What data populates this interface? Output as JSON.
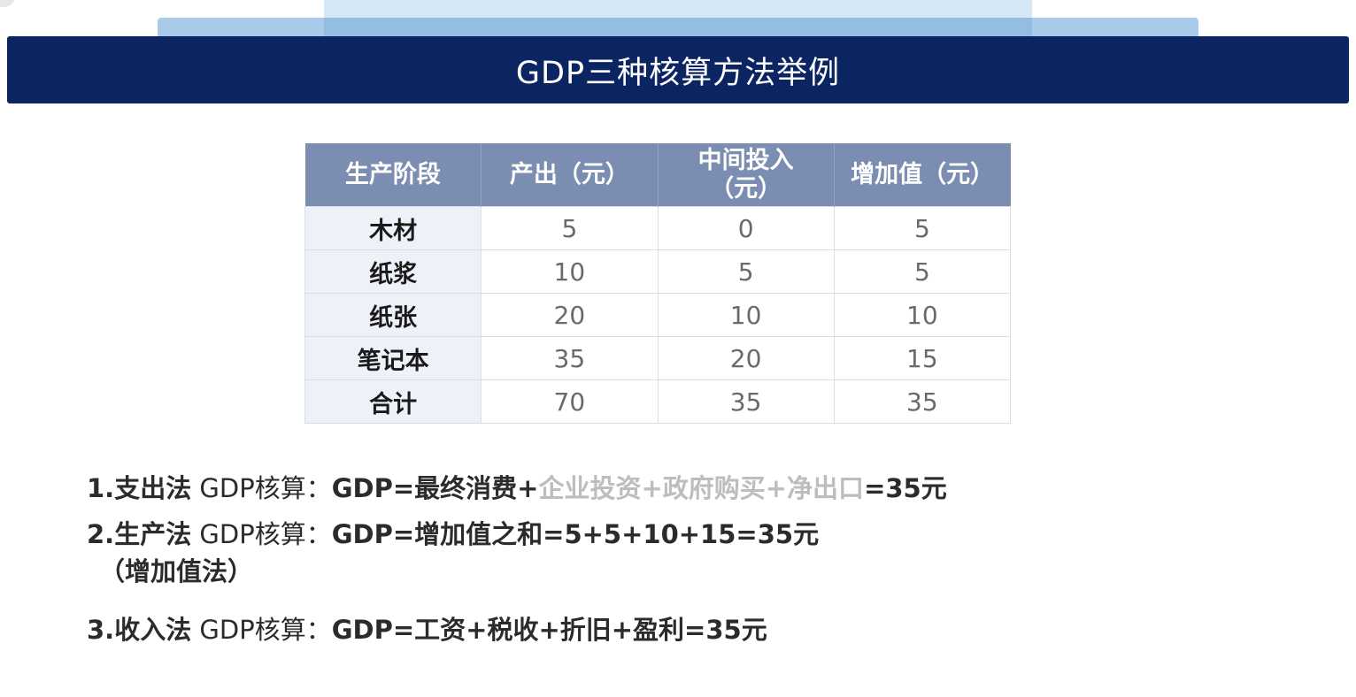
{
  "header": {
    "title": "GDP三种核算方法举例"
  },
  "table": {
    "headers": [
      "生产阶段",
      "产出（元）",
      "中间投入\n（元）",
      "增加值（元）"
    ],
    "rows": [
      {
        "stage": "木材",
        "output": "5",
        "input": "0",
        "value_added": "5"
      },
      {
        "stage": "纸浆",
        "output": "10",
        "input": "5",
        "value_added": "5"
      },
      {
        "stage": "纸张",
        "output": "20",
        "input": "10",
        "value_added": "10"
      },
      {
        "stage": "笔记本",
        "output": "35",
        "input": "20",
        "value_added": "15"
      },
      {
        "stage": "合计",
        "output": "70",
        "input": "35",
        "value_added": "35"
      }
    ]
  },
  "methods": {
    "m1": {
      "name": "1.支出法",
      "label": " GDP核算：",
      "formula_start": "GDP=最终消费+",
      "formula_grey": "企业投资+政府购买+净出口",
      "formula_end": "=35元"
    },
    "m2": {
      "name": "2.生产法",
      "label": " GDP核算：",
      "formula": "GDP=增加值之和=5+5+10+15=35元",
      "subname": "（增加值法）"
    },
    "m3": {
      "name": "3.收入法",
      "label": " GDP核算：",
      "formula": "GDP=工资+税收+折旧+盈利=35元"
    }
  },
  "colors": {
    "banner": "#0b2563",
    "table_header": "#7b8db0",
    "muted_text": "#bdbdbd"
  }
}
